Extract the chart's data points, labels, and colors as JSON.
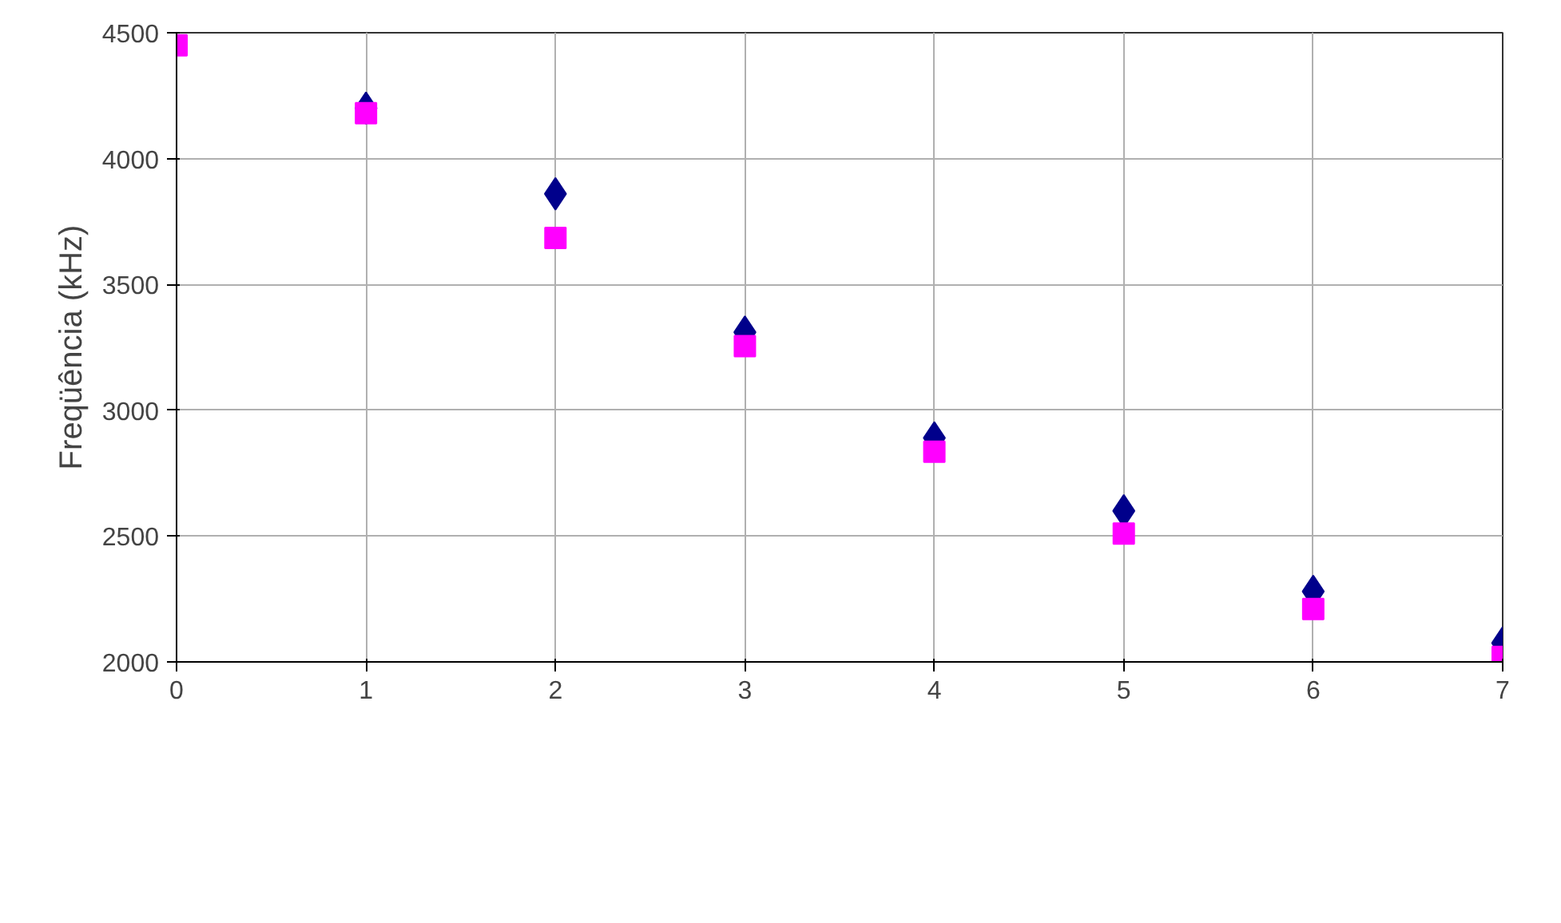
{
  "chart_data": {
    "type": "scatter",
    "ylabel": "Freqüência (kHz)",
    "x": [
      0,
      1,
      2,
      3,
      4,
      5,
      6,
      7
    ],
    "series": [
      {
        "color": "#00008b",
        "marker": "diamond",
        "values": [
          null,
          4200,
          3860,
          3310,
          2890,
          2600,
          2280,
          2075
        ]
      },
      {
        "color": "#ff00ff",
        "marker": "square",
        "values": [
          4450,
          4180,
          3685,
          3255,
          2835,
          2510,
          2210,
          2020
        ]
      }
    ],
    "xlim": [
      0,
      7
    ],
    "xticks": [
      0,
      1,
      2,
      3,
      4,
      5,
      6,
      7
    ],
    "ylim": [
      2000,
      4500
    ],
    "yticks": [
      2000,
      2500,
      3000,
      3500,
      4000,
      4500
    ],
    "grid": true
  }
}
